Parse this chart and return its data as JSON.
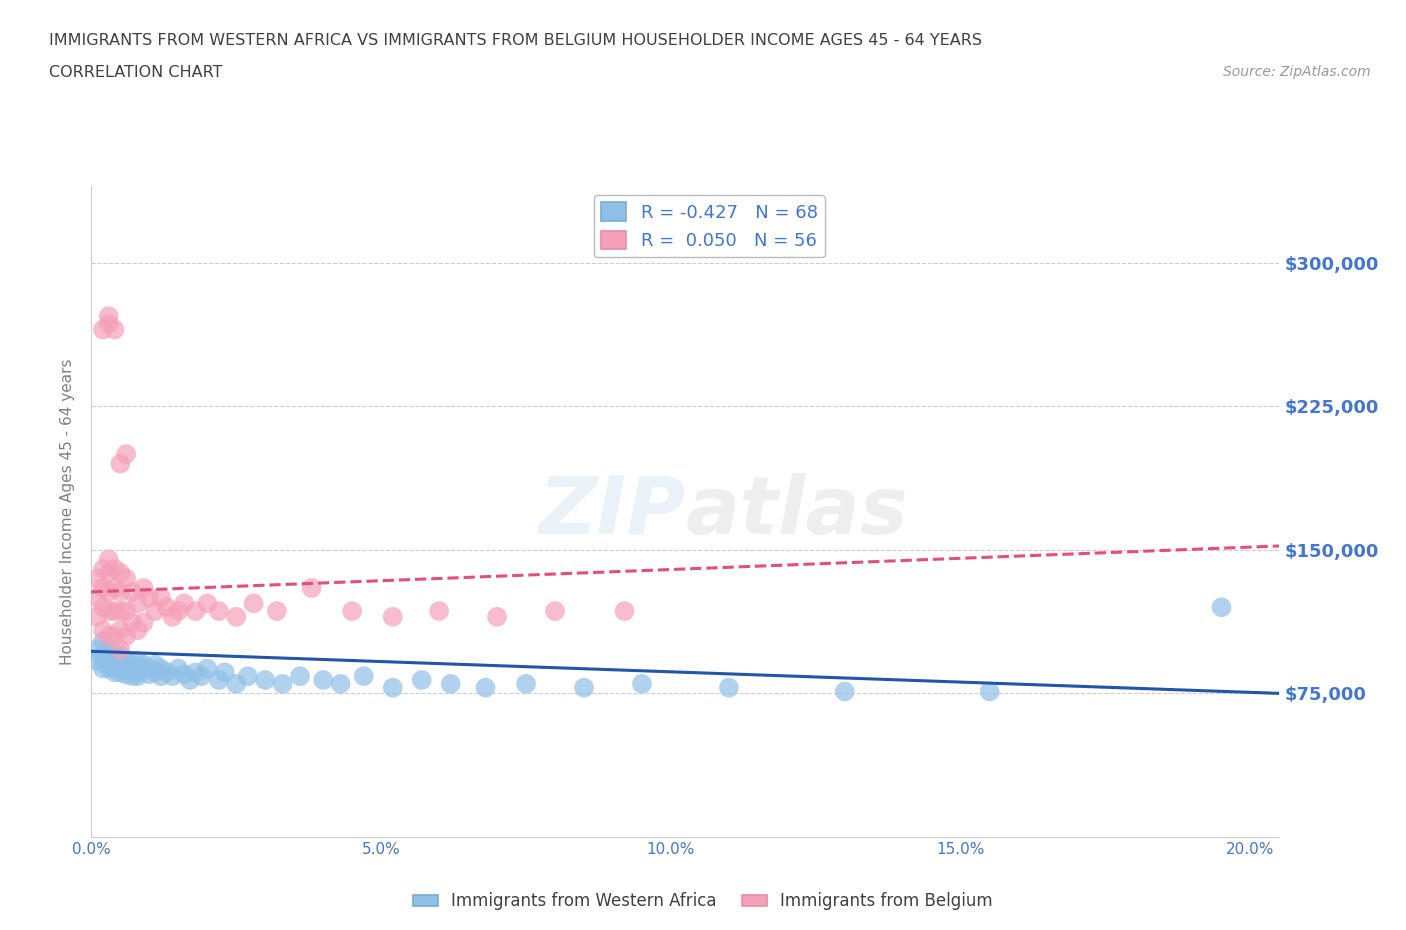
{
  "title_line1": "IMMIGRANTS FROM WESTERN AFRICA VS IMMIGRANTS FROM BELGIUM HOUSEHOLDER INCOME AGES 45 - 64 YEARS",
  "title_line2": "CORRELATION CHART",
  "source_text": "Source: ZipAtlas.com",
  "ylabel": "Householder Income Ages 45 - 64 years",
  "xlim": [
    0.0,
    0.205
  ],
  "ylim": [
    0,
    340000
  ],
  "ytick_values": [
    75000,
    150000,
    225000,
    300000
  ],
  "ytick_labels": [
    "$75,000",
    "$150,000",
    "$225,000",
    "$300,000"
  ],
  "xtick_values": [
    0.0,
    0.05,
    0.1,
    0.15,
    0.2
  ],
  "xtick_labels": [
    "0.0%",
    "5.0%",
    "10.0%",
    "15.0%",
    "20.0%"
  ],
  "watermark": "ZIPatlas",
  "series_blue": {
    "name": "Immigrants from Western Africa",
    "color": "#90c0e8",
    "trendline_color": "#2255aa",
    "x": [
      0.001,
      0.001,
      0.002,
      0.002,
      0.002,
      0.002,
      0.003,
      0.003,
      0.003,
      0.003,
      0.003,
      0.004,
      0.004,
      0.004,
      0.004,
      0.004,
      0.005,
      0.005,
      0.005,
      0.005,
      0.005,
      0.006,
      0.006,
      0.006,
      0.006,
      0.007,
      0.007,
      0.007,
      0.008,
      0.008,
      0.008,
      0.009,
      0.009,
      0.01,
      0.01,
      0.011,
      0.011,
      0.012,
      0.012,
      0.013,
      0.014,
      0.015,
      0.016,
      0.017,
      0.018,
      0.019,
      0.02,
      0.022,
      0.023,
      0.025,
      0.027,
      0.03,
      0.033,
      0.036,
      0.04,
      0.043,
      0.047,
      0.052,
      0.057,
      0.062,
      0.068,
      0.075,
      0.085,
      0.095,
      0.11,
      0.13,
      0.155,
      0.195
    ],
    "y": [
      92000,
      98000,
      88000,
      95000,
      102000,
      92000,
      90000,
      95000,
      88000,
      92000,
      98000,
      88000,
      93000,
      90000,
      95000,
      86000,
      90000,
      86000,
      92000,
      88000,
      95000,
      88000,
      92000,
      85000,
      90000,
      88000,
      84000,
      90000,
      86000,
      92000,
      84000,
      88000,
      90000,
      85000,
      88000,
      86000,
      90000,
      84000,
      88000,
      86000,
      84000,
      88000,
      85000,
      82000,
      86000,
      84000,
      88000,
      82000,
      86000,
      80000,
      84000,
      82000,
      80000,
      84000,
      82000,
      80000,
      84000,
      78000,
      82000,
      80000,
      78000,
      80000,
      78000,
      80000,
      78000,
      76000,
      76000,
      120000
    ]
  },
  "series_pink": {
    "name": "Immigrants from Belgium",
    "color": "#f5a0b8",
    "trendline_color": "#e0507a",
    "x": [
      0.001,
      0.001,
      0.001,
      0.002,
      0.002,
      0.002,
      0.002,
      0.003,
      0.003,
      0.003,
      0.003,
      0.003,
      0.004,
      0.004,
      0.004,
      0.004,
      0.005,
      0.005,
      0.005,
      0.005,
      0.005,
      0.006,
      0.006,
      0.006,
      0.007,
      0.007,
      0.008,
      0.008,
      0.009,
      0.009,
      0.01,
      0.011,
      0.012,
      0.013,
      0.014,
      0.015,
      0.016,
      0.018,
      0.02,
      0.022,
      0.025,
      0.028,
      0.032,
      0.038,
      0.045,
      0.052,
      0.06,
      0.07,
      0.08,
      0.092,
      0.002,
      0.003,
      0.003,
      0.004,
      0.005,
      0.006
    ],
    "y": [
      135000,
      125000,
      115000,
      140000,
      130000,
      120000,
      108000,
      145000,
      138000,
      128000,
      118000,
      105000,
      140000,
      130000,
      118000,
      105000,
      138000,
      128000,
      118000,
      108000,
      98000,
      135000,
      118000,
      105000,
      128000,
      112000,
      122000,
      108000,
      130000,
      112000,
      125000,
      118000,
      125000,
      120000,
      115000,
      118000,
      122000,
      118000,
      122000,
      118000,
      115000,
      122000,
      118000,
      130000,
      118000,
      115000,
      118000,
      115000,
      118000,
      118000,
      265000,
      268000,
      272000,
      265000,
      195000,
      200000
    ]
  },
  "blue_trendline_ends": [
    0.0,
    0.205,
    97000,
    75000
  ],
  "pink_trendline_ends": [
    0.0,
    0.205,
    128000,
    152000
  ],
  "background_color": "#ffffff",
  "grid_color": "#cccccc",
  "title_color": "#404040",
  "axis_label_color": "#808080",
  "tick_label_color": "#4477cc"
}
